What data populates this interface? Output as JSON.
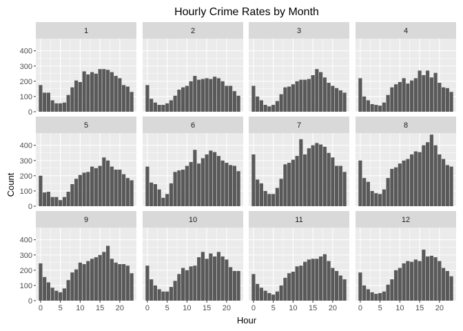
{
  "chart_data": {
    "type": "bar",
    "title": "Hourly Crime Rates by Month",
    "xlabel": "Hour",
    "ylabel": "Count",
    "facet_labels": [
      "1",
      "2",
      "3",
      "4",
      "5",
      "6",
      "7",
      "8",
      "9",
      "10",
      "11",
      "12"
    ],
    "x_ticks": [
      0,
      5,
      10,
      15,
      20
    ],
    "x_tick_labels": [
      "0",
      "5",
      "10",
      "15",
      "20"
    ],
    "y_ticks": [
      0,
      100,
      200,
      300,
      400
    ],
    "y_tick_labels": [
      "0",
      "100",
      "200",
      "300",
      "400"
    ],
    "ylim": [
      0,
      480
    ],
    "xlim": [
      -1.2,
      24.2
    ],
    "bar_color": "#595959",
    "panel_color": "#EBEBEB",
    "strip_color": "#D9D9D9",
    "hours": [
      0,
      1,
      2,
      3,
      4,
      5,
      6,
      7,
      8,
      9,
      10,
      11,
      12,
      13,
      14,
      15,
      16,
      17,
      18,
      19,
      20,
      21,
      22,
      23
    ],
    "series": [
      {
        "facet": "1",
        "values": [
          175,
          125,
          125,
          75,
          55,
          55,
          60,
          110,
          160,
          205,
          195,
          265,
          245,
          260,
          250,
          280,
          280,
          275,
          260,
          235,
          220,
          175,
          165,
          130
        ]
      },
      {
        "facet": "2",
        "values": [
          175,
          85,
          60,
          45,
          45,
          55,
          75,
          105,
          145,
          160,
          170,
          200,
          235,
          210,
          215,
          220,
          215,
          230,
          220,
          200,
          170,
          170,
          135,
          105
        ]
      },
      {
        "facet": "3",
        "values": [
          170,
          100,
          75,
          45,
          35,
          45,
          70,
          115,
          160,
          165,
          180,
          200,
          210,
          210,
          215,
          240,
          280,
          260,
          225,
          190,
          170,
          155,
          140,
          125
        ]
      },
      {
        "facet": "4",
        "values": [
          220,
          100,
          75,
          50,
          45,
          40,
          60,
          110,
          160,
          180,
          195,
          220,
          185,
          205,
          220,
          270,
          240,
          270,
          225,
          255,
          190,
          160,
          155,
          130
        ]
      },
      {
        "facet": "5",
        "values": [
          200,
          90,
          95,
          60,
          60,
          40,
          60,
          95,
          145,
          180,
          205,
          220,
          225,
          260,
          250,
          265,
          320,
          300,
          260,
          240,
          240,
          210,
          185,
          170
        ]
      },
      {
        "facet": "6",
        "values": [
          260,
          155,
          145,
          110,
          55,
          80,
          150,
          225,
          235,
          240,
          265,
          290,
          370,
          280,
          315,
          340,
          365,
          355,
          330,
          300,
          285,
          270,
          265,
          230
        ]
      },
      {
        "facet": "7",
        "values": [
          340,
          175,
          150,
          100,
          80,
          80,
          120,
          180,
          275,
          285,
          305,
          330,
          440,
          340,
          380,
          400,
          415,
          405,
          390,
          350,
          320,
          265,
          265,
          225
        ]
      },
      {
        "facet": "8",
        "values": [
          300,
          185,
          160,
          100,
          85,
          80,
          110,
          185,
          245,
          255,
          280,
          300,
          310,
          340,
          360,
          355,
          400,
          420,
          470,
          400,
          340,
          310,
          270,
          260
        ]
      },
      {
        "facet": "9",
        "values": [
          245,
          155,
          120,
          85,
          65,
          55,
          80,
          135,
          185,
          205,
          250,
          240,
          260,
          275,
          285,
          300,
          320,
          360,
          275,
          250,
          240,
          240,
          230,
          180
        ]
      },
      {
        "facet": "10",
        "values": [
          230,
          140,
          100,
          75,
          60,
          60,
          90,
          130,
          175,
          215,
          200,
          225,
          230,
          285,
          320,
          275,
          310,
          290,
          320,
          290,
          270,
          220,
          195,
          195
        ]
      },
      {
        "facet": "11",
        "values": [
          175,
          110,
          85,
          65,
          50,
          40,
          60,
          100,
          150,
          180,
          190,
          225,
          230,
          255,
          270,
          275,
          275,
          290,
          305,
          260,
          215,
          195,
          165,
          140
        ]
      },
      {
        "facet": "12",
        "values": [
          185,
          100,
          75,
          55,
          45,
          50,
          60,
          105,
          140,
          200,
          215,
          245,
          260,
          255,
          270,
          260,
          335,
          290,
          295,
          285,
          260,
          215,
          195,
          160
        ]
      }
    ]
  }
}
